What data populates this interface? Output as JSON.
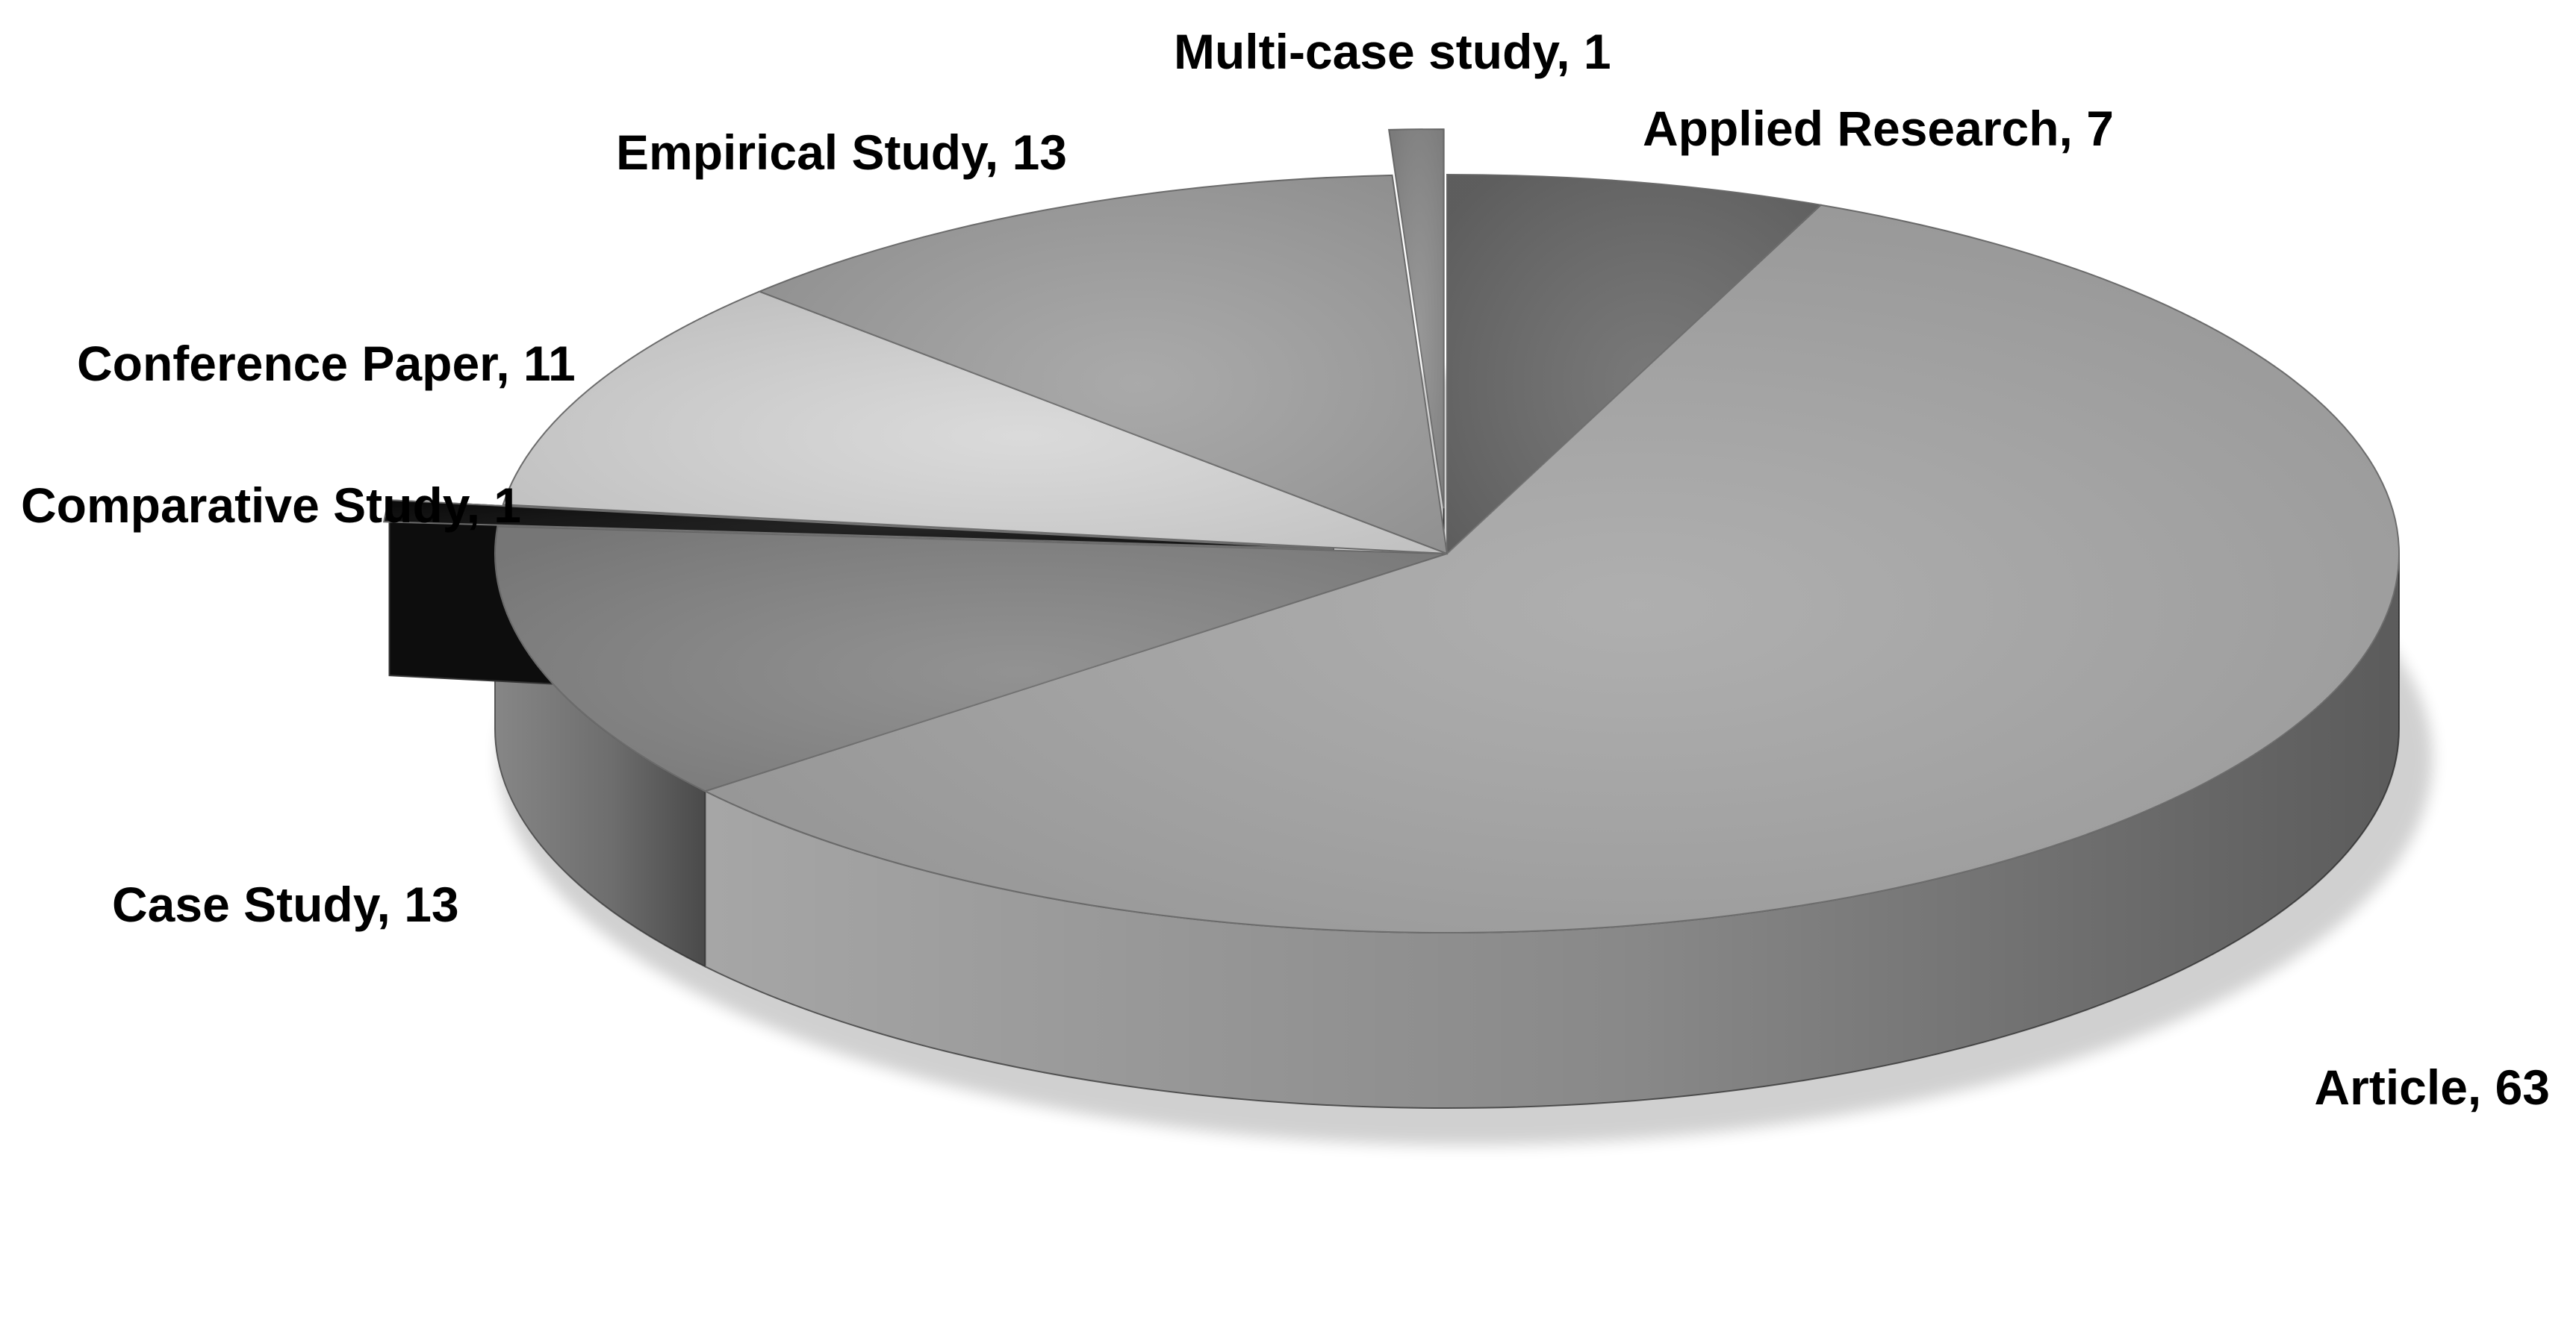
{
  "chart_data": {
    "type": "pie",
    "style": "3d-exploded",
    "title": "",
    "unit": "count",
    "slices": [
      {
        "label": "Applied Research",
        "value": 7,
        "text": "Applied Research, 7",
        "color": "#6a6a6a",
        "exploded": false
      },
      {
        "label": "Article",
        "value": 63,
        "text": "Article, 63",
        "color": "#a6a6a6",
        "exploded": false
      },
      {
        "label": "Case Study",
        "value": 13,
        "text": "Case Study, 13",
        "color": "#868686",
        "exploded": false
      },
      {
        "label": "Comparative Study",
        "value": 1,
        "text": "Comparative Study, 1",
        "color": "#0d0d0d",
        "exploded": true
      },
      {
        "label": "Conference Paper",
        "value": 11,
        "text": "Conference Paper, 11",
        "color": "#d6d6d6",
        "exploded": false
      },
      {
        "label": "Empirical Study",
        "value": 13,
        "text": "Empirical Study, 13",
        "color": "#a0a0a0",
        "exploded": false
      },
      {
        "label": "Multi-case study",
        "value": 1,
        "text": "Multi-case study, 1",
        "color": "#8c8c8c",
        "exploded": true
      }
    ]
  }
}
